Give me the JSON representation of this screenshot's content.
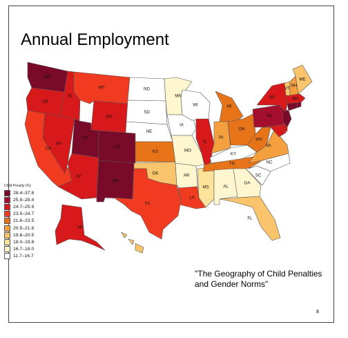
{
  "title": "Annual Employment",
  "caption": "\"The Geography of Child Penalties and Gender Norms\"",
  "corner_mark": "8",
  "legend": {
    "title": "Child Penalty (%)",
    "bins": [
      {
        "label": "28.4–37.8",
        "color": "#7a0a2a"
      },
      {
        "label": "25.9–28.4",
        "color": "#a50f2e"
      },
      {
        "label": "24.7–25.9",
        "color": "#d7191c"
      },
      {
        "label": "23.5–24.7",
        "color": "#f03b20"
      },
      {
        "label": "21.6–23.5",
        "color": "#e8741a"
      },
      {
        "label": "20.5–21.6",
        "color": "#f5a03f"
      },
      {
        "label": "19.8–20.5",
        "color": "#f9c46b"
      },
      {
        "label": "18.0–19.8",
        "color": "#fde29a"
      },
      {
        "label": "16.7–18.0",
        "color": "#fef6cf"
      },
      {
        "label": "11.7–16.7",
        "color": "#ffffff"
      }
    ]
  },
  "states": [
    {
      "abbr": "WA",
      "bin": 0
    },
    {
      "abbr": "OR",
      "bin": 2
    },
    {
      "abbr": "CA",
      "bin": 3
    },
    {
      "abbr": "ID",
      "bin": 2
    },
    {
      "abbr": "NV",
      "bin": 2
    },
    {
      "abbr": "AZ",
      "bin": 2
    },
    {
      "abbr": "MT",
      "bin": 3
    },
    {
      "abbr": "WY",
      "bin": 2
    },
    {
      "abbr": "UT",
      "bin": 0
    },
    {
      "abbr": "CO",
      "bin": 0
    },
    {
      "abbr": "NM",
      "bin": 0
    },
    {
      "abbr": "ND",
      "bin": 9
    },
    {
      "abbr": "SD",
      "bin": 9
    },
    {
      "abbr": "NE",
      "bin": 9
    },
    {
      "abbr": "KS",
      "bin": 4
    },
    {
      "abbr": "OK",
      "bin": 6
    },
    {
      "abbr": "TX",
      "bin": 3
    },
    {
      "abbr": "MN",
      "bin": 8
    },
    {
      "abbr": "IA",
      "bin": 9
    },
    {
      "abbr": "MO",
      "bin": 8
    },
    {
      "abbr": "AR",
      "bin": 8
    },
    {
      "abbr": "LA",
      "bin": 3
    },
    {
      "abbr": "WI",
      "bin": 9
    },
    {
      "abbr": "IL",
      "bin": 2
    },
    {
      "abbr": "MS",
      "bin": 7
    },
    {
      "abbr": "MI",
      "bin": 4
    },
    {
      "abbr": "IN",
      "bin": 5
    },
    {
      "abbr": "KY",
      "bin": 9
    },
    {
      "abbr": "TN",
      "bin": 4
    },
    {
      "abbr": "AL",
      "bin": 8
    },
    {
      "abbr": "GA",
      "bin": 8
    },
    {
      "abbr": "FL",
      "bin": 6
    },
    {
      "abbr": "OH",
      "bin": 4
    },
    {
      "abbr": "WV",
      "bin": 4
    },
    {
      "abbr": "VA",
      "bin": 5
    },
    {
      "abbr": "NC",
      "bin": 9
    },
    {
      "abbr": "SC",
      "bin": 9
    },
    {
      "abbr": "PA",
      "bin": 1
    },
    {
      "abbr": "NY",
      "bin": 2
    },
    {
      "abbr": "VT",
      "bin": 6
    },
    {
      "abbr": "NH",
      "bin": 5
    },
    {
      "abbr": "ME",
      "bin": 6
    },
    {
      "abbr": "MA",
      "bin": 2
    },
    {
      "abbr": "RI",
      "bin": 0
    },
    {
      "abbr": "CT",
      "bin": 0
    },
    {
      "abbr": "NJ",
      "bin": 0
    },
    {
      "abbr": "DE",
      "bin": 2
    },
    {
      "abbr": "MD",
      "bin": 2
    },
    {
      "abbr": "AK",
      "bin": 2
    },
    {
      "abbr": "HI",
      "bin": 6
    }
  ]
}
